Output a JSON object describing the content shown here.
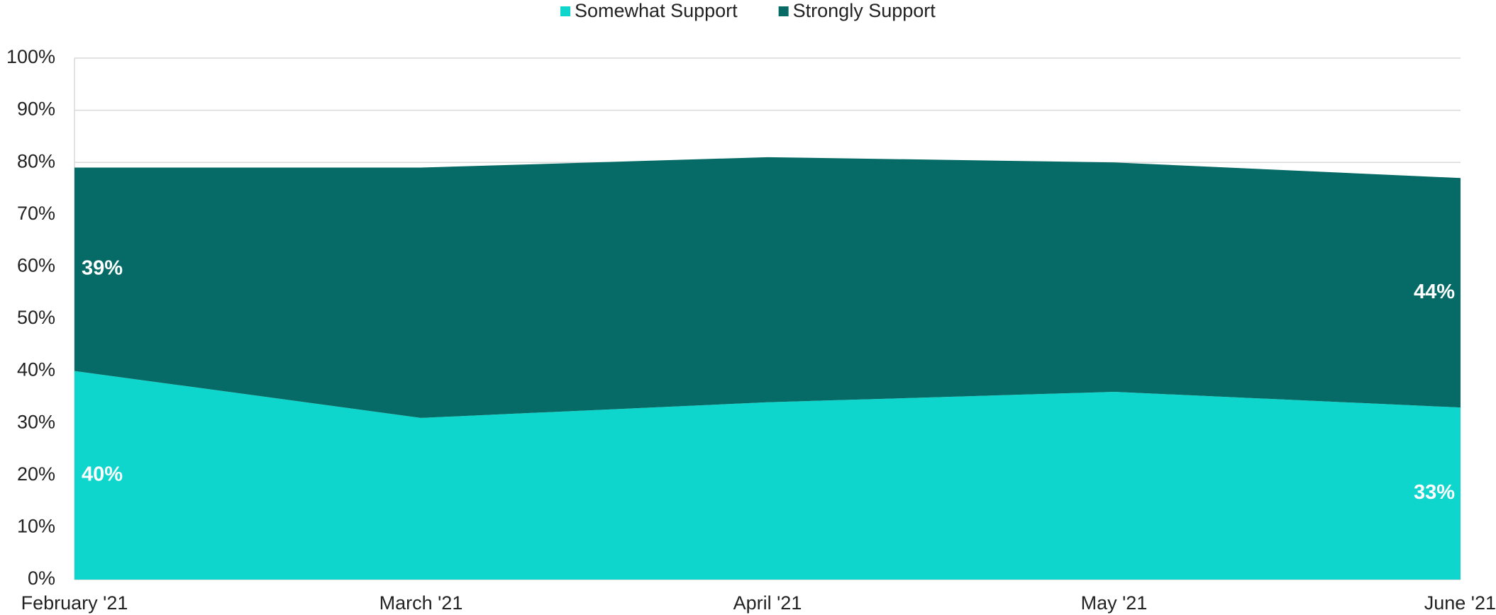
{
  "chart_data": {
    "type": "stacked_area",
    "categories": [
      "February '21",
      "March '21",
      "April '21",
      "May '21",
      "June '21"
    ],
    "series": [
      {
        "name": "Somewhat Support",
        "color": "#0fd6cc",
        "values": [
          40,
          31,
          34,
          36,
          33
        ],
        "value_labels": [
          "40%",
          null,
          null,
          null,
          "33%"
        ]
      },
      {
        "name": "Strongly Support",
        "color": "#066b66",
        "values": [
          39,
          48,
          47,
          44,
          44
        ],
        "value_labels": [
          "39%",
          null,
          null,
          null,
          "44%"
        ]
      }
    ],
    "ylim": [
      0,
      100
    ],
    "yticks": [
      {
        "value": 0,
        "label": "0%"
      },
      {
        "value": 10,
        "label": "10%"
      },
      {
        "value": 20,
        "label": "20%"
      },
      {
        "value": 30,
        "label": "30%"
      },
      {
        "value": 40,
        "label": "40%"
      },
      {
        "value": 50,
        "label": "50%"
      },
      {
        "value": 60,
        "label": "60%"
      },
      {
        "value": 70,
        "label": "70%"
      },
      {
        "value": 80,
        "label": "80%"
      },
      {
        "value": 90,
        "label": "90%"
      },
      {
        "value": 100,
        "label": "100%"
      }
    ],
    "grid": true,
    "legend": "top"
  }
}
